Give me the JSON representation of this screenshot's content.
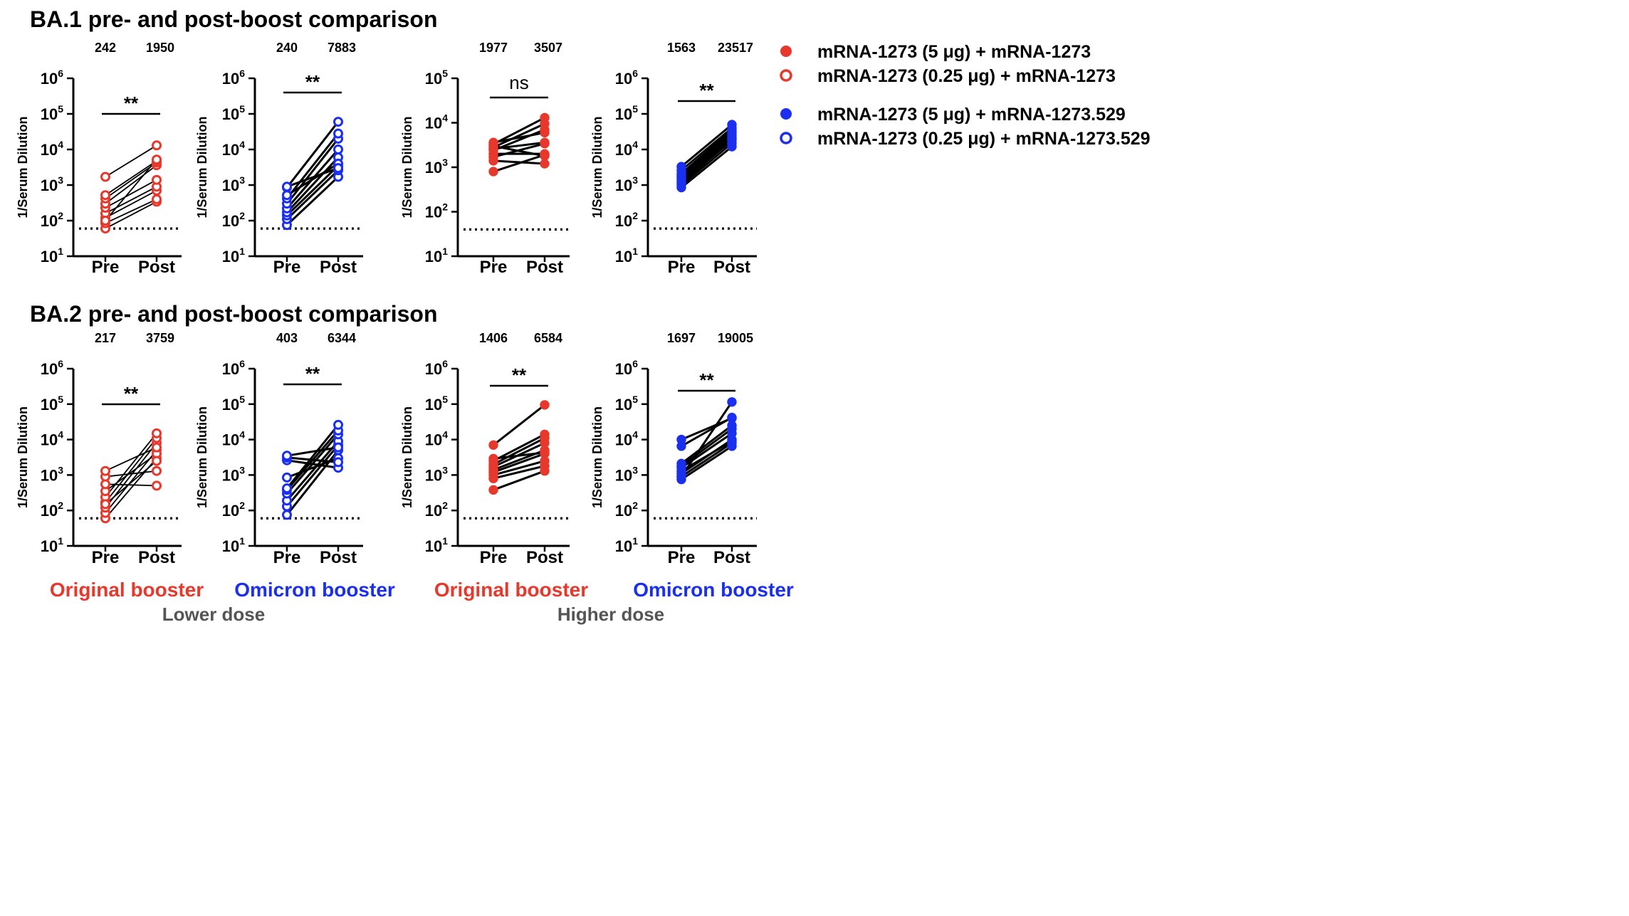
{
  "sections": [
    {
      "title": "BA.1 pre- and post-boost comparison"
    },
    {
      "title": "BA.2 pre- and post-boost comparison"
    }
  ],
  "legend": [
    {
      "label": "mRNA-1273 (5 μg) + mRNA-1273",
      "color": "#e8382c",
      "marker": "filled"
    },
    {
      "label": "mRNA-1273 (0.25 μg) + mRNA-1273",
      "color": "#e8382c",
      "marker": "open"
    },
    {
      "label": "mRNA-1273 (5 μg) + mRNA-1273.529",
      "color": "#1a2ff0",
      "marker": "filled"
    },
    {
      "label": "mRNA-1273 (0.25 μg) + mRNA-1273.529",
      "color": "#1a2ff0",
      "marker": "open"
    }
  ],
  "column_labels": [
    {
      "label": "Original booster",
      "color": "#e8382c"
    },
    {
      "label": "Omicron booster",
      "color": "#1a2ff0"
    },
    {
      "label": "Original booster",
      "color": "#e8382c"
    },
    {
      "label": "Omicron booster",
      "color": "#1a2ff0"
    }
  ],
  "group_labels": [
    "Lower dose",
    "Higher dose"
  ],
  "chart_data": [
    {
      "type": "scatter",
      "section": 0,
      "column": 0,
      "ylabel": "1/Serum Dilution",
      "categories": [
        "Pre",
        "Post"
      ],
      "ylim_exp": [
        1,
        6
      ],
      "gmt": [
        "242",
        "1950"
      ],
      "sig": "**",
      "color": "#e8382c",
      "marker": "open",
      "limit_of_detection": 60,
      "connector_width": 1.8,
      "pairs": [
        [
          60,
          340
        ],
        [
          85,
          400
        ],
        [
          120,
          700
        ],
        [
          160,
          900
        ],
        [
          230,
          1400
        ],
        [
          300,
          3600
        ],
        [
          420,
          4300
        ],
        [
          520,
          4800
        ],
        [
          1700,
          13000
        ],
        [
          100,
          5200
        ]
      ]
    },
    {
      "type": "scatter",
      "section": 0,
      "column": 1,
      "ylabel": "1/Serum Dilution",
      "categories": [
        "Pre",
        "Post"
      ],
      "ylim_exp": [
        1,
        6
      ],
      "gmt": [
        "240",
        "7883"
      ],
      "sig": "**",
      "color": "#1a2ff0",
      "marker": "open",
      "limit_of_detection": 60,
      "connector_width": 3,
      "pairs": [
        [
          75,
          1700
        ],
        [
          110,
          2600
        ],
        [
          140,
          3500
        ],
        [
          170,
          6000
        ],
        [
          220,
          10000
        ],
        [
          300,
          20000
        ],
        [
          420,
          28000
        ],
        [
          520,
          4000
        ],
        [
          850,
          60000
        ],
        [
          900,
          3000
        ]
      ]
    },
    {
      "type": "scatter",
      "section": 0,
      "column": 2,
      "ylabel": "1/Serum Dilution",
      "categories": [
        "Pre",
        "Post"
      ],
      "ylim_exp": [
        1,
        5
      ],
      "gmt": [
        "1977",
        "3507"
      ],
      "sig": "ns",
      "color": "#e8382c",
      "marker": "filled",
      "limit_of_detection": 40,
      "connector_width": 3,
      "pairs": [
        [
          800,
          1900
        ],
        [
          1400,
          1200
        ],
        [
          1700,
          3400
        ],
        [
          2000,
          2000
        ],
        [
          2400,
          7000
        ],
        [
          2800,
          9500
        ],
        [
          3000,
          1800
        ],
        [
          3300,
          13000
        ],
        [
          3600,
          6000
        ],
        [
          2600,
          3600
        ]
      ]
    },
    {
      "type": "scatter",
      "section": 0,
      "column": 3,
      "ylabel": "1/Serum Dilution",
      "categories": [
        "Pre",
        "Post"
      ],
      "ylim_exp": [
        1,
        6
      ],
      "gmt": [
        "1563",
        "23517"
      ],
      "sig": "**",
      "color": "#1a2ff0",
      "marker": "filled",
      "limit_of_detection": 60,
      "connector_width": 3,
      "pairs": [
        [
          850,
          12000
        ],
        [
          1000,
          15000
        ],
        [
          1200,
          18000
        ],
        [
          1400,
          22000
        ],
        [
          1600,
          25000
        ],
        [
          1800,
          30000
        ],
        [
          2100,
          35000
        ],
        [
          2600,
          40000
        ],
        [
          3300,
          50000
        ],
        [
          1100,
          20000
        ]
      ]
    },
    {
      "type": "scatter",
      "section": 1,
      "column": 0,
      "ylabel": "1/Serum Dilution",
      "categories": [
        "Pre",
        "Post"
      ],
      "ylim_exp": [
        1,
        6
      ],
      "gmt": [
        "217",
        "3759"
      ],
      "sig": "**",
      "color": "#e8382c",
      "marker": "open",
      "limit_of_detection": 60,
      "connector_width": 1.8,
      "pairs": [
        [
          60,
          3000
        ],
        [
          85,
          5000
        ],
        [
          120,
          8000
        ],
        [
          170,
          11000
        ],
        [
          240,
          15000
        ],
        [
          350,
          4000
        ],
        [
          550,
          500
        ],
        [
          900,
          1300
        ],
        [
          1300,
          6000
        ],
        [
          150,
          2500
        ]
      ]
    },
    {
      "type": "scatter",
      "section": 1,
      "column": 1,
      "ylabel": "1/Serum Dilution",
      "categories": [
        "Pre",
        "Post"
      ],
      "ylim_exp": [
        1,
        6
      ],
      "gmt": [
        "403",
        "6344"
      ],
      "sig": "**",
      "color": "#1a2ff0",
      "marker": "open",
      "limit_of_detection": 60,
      "connector_width": 3,
      "pairs": [
        [
          75,
          5000
        ],
        [
          130,
          7000
        ],
        [
          190,
          9000
        ],
        [
          300,
          14000
        ],
        [
          380,
          18000
        ],
        [
          420,
          26000
        ],
        [
          850,
          3000
        ],
        [
          2600,
          1600
        ],
        [
          3100,
          2300
        ],
        [
          3500,
          6000
        ]
      ]
    },
    {
      "type": "scatter",
      "section": 1,
      "column": 2,
      "ylabel": "1/Serum Dilution",
      "categories": [
        "Pre",
        "Post"
      ],
      "ylim_exp": [
        1,
        6
      ],
      "gmt": [
        "1406",
        "6584"
      ],
      "sig": "**",
      "color": "#e8382c",
      "marker": "filled",
      "limit_of_detection": 60,
      "connector_width": 3,
      "pairs": [
        [
          380,
          1300
        ],
        [
          800,
          1800
        ],
        [
          1000,
          2500
        ],
        [
          1200,
          4000
        ],
        [
          1400,
          5000
        ],
        [
          1700,
          8000
        ],
        [
          2000,
          11000
        ],
        [
          2500,
          14000
        ],
        [
          2900,
          4300
        ],
        [
          7000,
          95000
        ]
      ]
    },
    {
      "type": "scatter",
      "section": 1,
      "column": 3,
      "ylabel": "1/Serum Dilution",
      "categories": [
        "Pre",
        "Post"
      ],
      "ylim_exp": [
        1,
        6
      ],
      "gmt": [
        "1697",
        "19005"
      ],
      "sig": "**",
      "color": "#1a2ff0",
      "marker": "filled",
      "limit_of_detection": 60,
      "connector_width": 3,
      "pairs": [
        [
          750,
          6500
        ],
        [
          900,
          8000
        ],
        [
          1100,
          10000
        ],
        [
          1600,
          15000
        ],
        [
          1800,
          20000
        ],
        [
          2100,
          25000
        ],
        [
          6500,
          42000
        ],
        [
          10000,
          40000
        ],
        [
          900,
          115000
        ],
        [
          1300,
          9000
        ]
      ]
    }
  ]
}
